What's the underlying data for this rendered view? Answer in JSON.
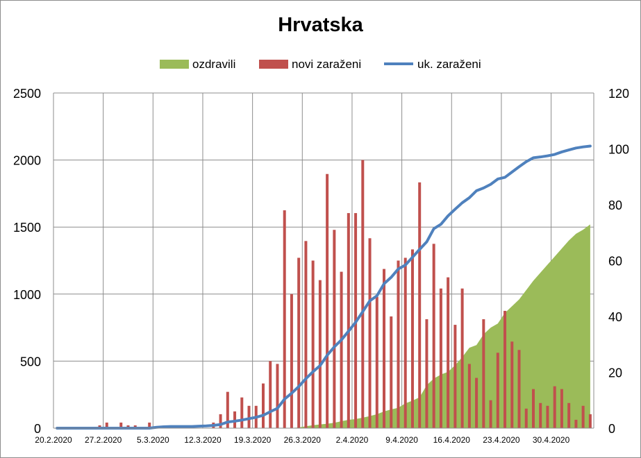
{
  "chart_data": {
    "type": "combo",
    "title": "Hrvatska",
    "legend": [
      {
        "label": "ozdravili",
        "kind": "area",
        "color": "#9bbb59"
      },
      {
        "label": "novi zaraženi",
        "kind": "bar",
        "color": "#c0504d"
      },
      {
        "label": "uk. zaraženi",
        "kind": "line",
        "color": "#4f81bd"
      }
    ],
    "legend_position": "top",
    "grid": true,
    "left_axis": {
      "min": 0,
      "max": 2500,
      "ticks": [
        "0",
        "500",
        "1000",
        "1500",
        "2000",
        "2500"
      ]
    },
    "right_axis": {
      "min": 0,
      "max": 120,
      "ticks": [
        "0",
        "20",
        "40",
        "60",
        "80",
        "100",
        "120"
      ]
    },
    "x_tick_labels": [
      "20.2.2020",
      "27.2.2020",
      "5.3.2020",
      "12.3.2020",
      "19.3.2020",
      "26.3.2020",
      "2.4.2020",
      "9.4.2020",
      "16.4.2020",
      "23.4.2020",
      "30.4.2020"
    ],
    "dates": [
      "20.2.",
      "21.2.",
      "22.2.",
      "23.2.",
      "24.2.",
      "25.2.",
      "26.2.",
      "27.2.",
      "28.2.",
      "29.2.",
      "1.3.",
      "2.3.",
      "3.3.",
      "4.3.",
      "5.3.",
      "6.3.",
      "7.3.",
      "8.3.",
      "9.3.",
      "10.3.",
      "11.3.",
      "12.3.",
      "13.3.",
      "14.3.",
      "15.3.",
      "16.3.",
      "17.3.",
      "18.3.",
      "19.3.",
      "20.3.",
      "21.3.",
      "22.3.",
      "23.3.",
      "24.3.",
      "25.3.",
      "26.3.",
      "27.3.",
      "28.3.",
      "29.3.",
      "30.3.",
      "31.3.",
      "1.4.",
      "2.4.",
      "3.4.",
      "4.4.",
      "5.4.",
      "6.4.",
      "7.4.",
      "8.4.",
      "9.4.",
      "10.4.",
      "11.4.",
      "12.4.",
      "13.4.",
      "14.4.",
      "15.4.",
      "16.4.",
      "17.4.",
      "18.4.",
      "19.4.",
      "20.4.",
      "21.4.",
      "22.4.",
      "23.4.",
      "24.4.",
      "25.4.",
      "26.4.",
      "27.4.",
      "28.4.",
      "29.4.",
      "30.4.",
      "1.5.",
      "2.5.",
      "3.5.",
      "4.5.",
      "5.5."
    ],
    "series": [
      {
        "name": "ozdravili",
        "axis": "left",
        "values": [
          0,
          0,
          0,
          0,
          0,
          0,
          0,
          0,
          0,
          0,
          0,
          0,
          0,
          0,
          0,
          0,
          0,
          0,
          0,
          0,
          0,
          0,
          0,
          0,
          0,
          0,
          0,
          0,
          0,
          0,
          0,
          0,
          1,
          1,
          5,
          14,
          22,
          28,
          33,
          40,
          52,
          62,
          68,
          78,
          90,
          104,
          125,
          140,
          152,
          185,
          205,
          230,
          320,
          370,
          400,
          420,
          470,
          530,
          600,
          620,
          700,
          750,
          780,
          860,
          910,
          960,
          1030,
          1100,
          1160,
          1220,
          1280,
          1340,
          1400,
          1450,
          1480,
          1520
        ]
      },
      {
        "name": "novi zaraženi",
        "axis": "right",
        "values": [
          0,
          0,
          0,
          0,
          0,
          0,
          1,
          2,
          0,
          2,
          1,
          1,
          0,
          2,
          0,
          0,
          0,
          0,
          0,
          0,
          0,
          0,
          2,
          5,
          13,
          6,
          11,
          8,
          8,
          16,
          24,
          23,
          78,
          48,
          61,
          67,
          60,
          53,
          91,
          71,
          56,
          77,
          77,
          96,
          68,
          47,
          57,
          40,
          60,
          61,
          64,
          88,
          39,
          66,
          50,
          54,
          37,
          50,
          23,
          18,
          39,
          10,
          27,
          42,
          31,
          28,
          7,
          14,
          9,
          8,
          15,
          14,
          9,
          3,
          8,
          5
        ]
      },
      {
        "name": "uk. zaraženi",
        "axis": "right",
        "values": [
          0,
          0,
          0,
          0,
          0,
          0,
          0,
          0,
          0,
          0,
          0,
          0,
          0,
          0,
          0.3,
          0.5,
          0.6,
          0.6,
          0.6,
          0.6,
          0.7,
          0.8,
          1.0,
          1.3,
          2.2,
          2.5,
          2.9,
          3.4,
          3.9,
          4.6,
          5.9,
          7.1,
          10.4,
          12.5,
          14.9,
          17.7,
          20.2,
          22.4,
          26.1,
          29.1,
          31.6,
          34.7,
          37.9,
          41.7,
          45.6,
          47.4,
          51.7,
          54.0,
          57.0,
          58.4,
          61.2,
          64.0,
          66.7,
          71.4,
          73.0,
          76.0,
          78.4,
          80.7,
          82.5,
          85.0,
          86.0,
          87.3,
          89.2,
          89.8,
          91.7,
          93.6,
          95.4,
          96.8,
          97.1,
          97.5,
          98.0,
          98.9,
          99.6,
          100.3,
          100.7,
          101.0
        ]
      }
    ]
  }
}
